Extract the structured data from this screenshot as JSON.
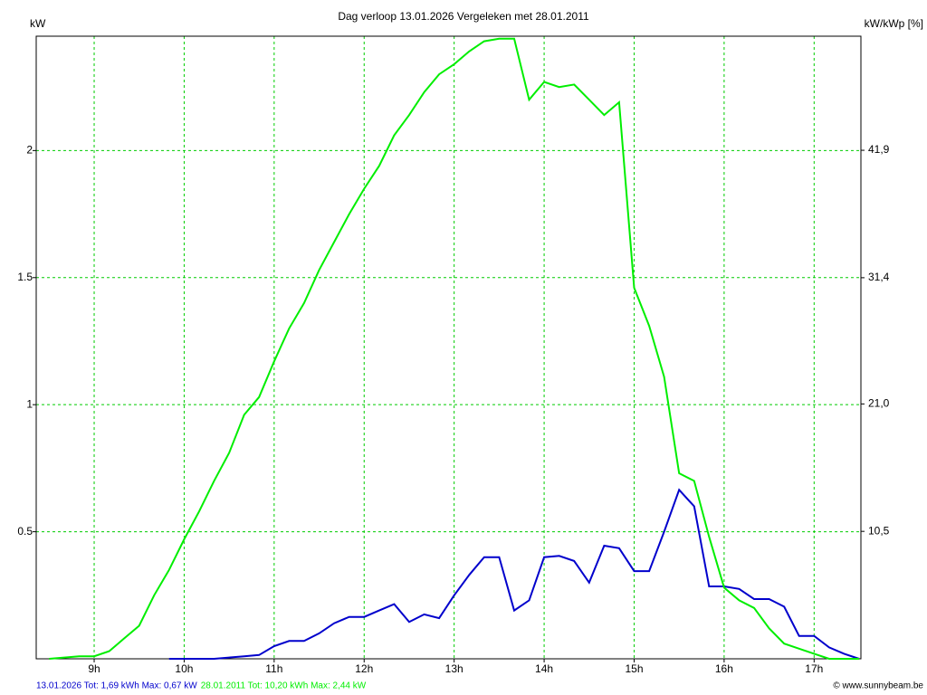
{
  "chart_data": {
    "type": "line",
    "title": "Dag  verloop 13.01.2026   Vergeleken met 28.01.2011",
    "y_label": "kW",
    "y2_label": "kW/kWp [%]",
    "copyright": "© www.sunnybeam.be",
    "grid": true,
    "grid_color": "#00cc00",
    "x": [
      8.5,
      8.667,
      8.833,
      9,
      9.167,
      9.333,
      9.5,
      9.667,
      9.833,
      10,
      10.167,
      10.333,
      10.5,
      10.667,
      10.833,
      11,
      11.167,
      11.333,
      11.5,
      11.667,
      11.833,
      12,
      12.167,
      12.333,
      12.5,
      12.667,
      12.833,
      13,
      13.167,
      13.333,
      13.5,
      13.667,
      13.833,
      14,
      14.167,
      14.333,
      14.5,
      14.667,
      14.833,
      15,
      15.167,
      15.333,
      15.5,
      15.667,
      15.833,
      16,
      16.167,
      16.333,
      16.5,
      16.667,
      16.833,
      17,
      17.167,
      17.333,
      17.5
    ],
    "xlim": [
      8.356,
      17.52
    ],
    "xticks": [
      {
        "value": 9,
        "label": "9h"
      },
      {
        "value": 10,
        "label": "10h"
      },
      {
        "value": 11,
        "label": "11h"
      },
      {
        "value": 12,
        "label": "12h"
      },
      {
        "value": 13,
        "label": "13h"
      },
      {
        "value": 14,
        "label": "14h"
      },
      {
        "value": 15,
        "label": "15h"
      },
      {
        "value": 16,
        "label": "16h"
      },
      {
        "value": 17,
        "label": "17h"
      }
    ],
    "ylim": [
      0,
      2.45
    ],
    "yticks": [
      0.5,
      1,
      1.5,
      2
    ],
    "y2lim": [
      0,
      51.3
    ],
    "y2ticks": [
      {
        "value": 10.5,
        "label": "10,5"
      },
      {
        "value": 21.0,
        "label": "21,0"
      },
      {
        "value": 31.4,
        "label": "31,4"
      },
      {
        "value": 41.9,
        "label": "41,9"
      }
    ],
    "series": [
      {
        "name": "13.01.2026 Tot: 1,69 kWh Max: 0,67 kW",
        "color": "#0000cc",
        "values": [
          null,
          null,
          null,
          null,
          null,
          null,
          null,
          null,
          0,
          0,
          0,
          0,
          0.005,
          0.01,
          0.015,
          0.05,
          0.07,
          0.07,
          0.1,
          0.14,
          0.165,
          0.165,
          0.19,
          0.215,
          0.145,
          0.175,
          0.16,
          0.25,
          0.33,
          0.4,
          0.4,
          0.19,
          0.23,
          0.4,
          0.405,
          0.385,
          0.3,
          0.445,
          0.435,
          0.345,
          0.345,
          0.5,
          0.665,
          0.6,
          0.285,
          0.285,
          0.275,
          0.235,
          0.235,
          0.205,
          0.09,
          0.09,
          0.045,
          0.02,
          0
        ]
      },
      {
        "name": "28.01.2011 Tot: 10,20 kWh Max: 2,44 kW",
        "color": "#00ee00",
        "values": [
          0,
          0.005,
          0.01,
          0.01,
          0.03,
          0.08,
          0.13,
          0.25,
          0.35,
          0.47,
          0.58,
          0.7,
          0.81,
          0.96,
          1.03,
          1.17,
          1.3,
          1.4,
          1.53,
          1.64,
          1.75,
          1.85,
          1.94,
          2.06,
          2.14,
          2.23,
          2.3,
          2.34,
          2.39,
          2.43,
          2.44,
          2.44,
          2.2,
          2.27,
          2.25,
          2.26,
          2.2,
          2.14,
          2.19,
          1.46,
          1.31,
          1.11,
          0.73,
          0.7,
          0.48,
          0.28,
          0.23,
          0.2,
          0.12,
          0.06,
          0.04,
          0.02,
          0,
          0,
          0
        ]
      }
    ]
  }
}
